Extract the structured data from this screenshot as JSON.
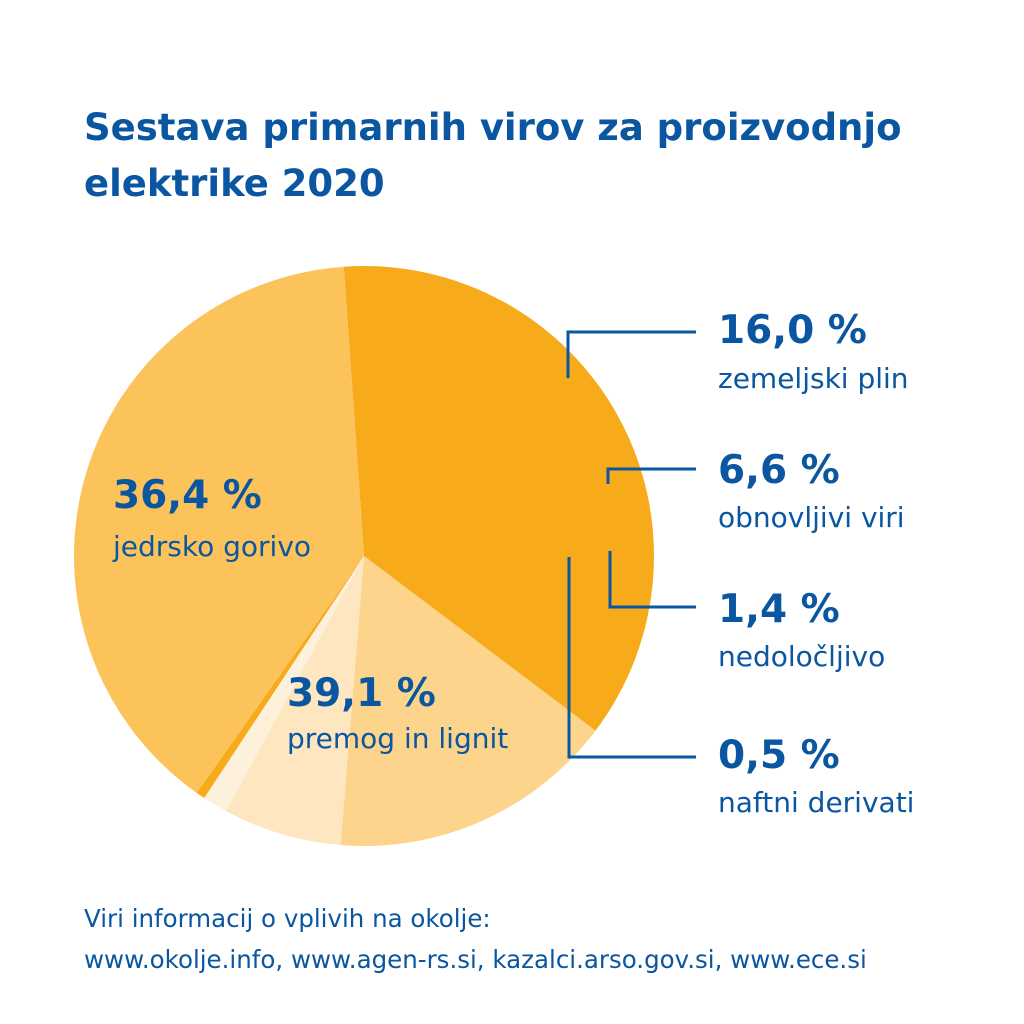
{
  "chart_data": {
    "type": "pie",
    "title": "Sestava primarnih virov za proizvodnjo elektrike 2020",
    "slices": [
      {
        "label": "jedrsko gorivo",
        "value": 36.4,
        "value_label": "36,4 %",
        "color": "#f7ab1b"
      },
      {
        "label": "zemeljski plin",
        "value": 16.0,
        "value_label": "16,0 %",
        "color": "#fdd48b"
      },
      {
        "label": "obnovljivi viri",
        "value": 6.6,
        "value_label": "6,6 %",
        "color": "#fde6c0"
      },
      {
        "label": "nedoločljivo",
        "value": 1.4,
        "value_label": "1,4 %",
        "color": "#fef1dc"
      },
      {
        "label": "naftni derivati",
        "value": 0.5,
        "value_label": "0,5 %",
        "color": "#f7ab1b"
      },
      {
        "label": "premog in lignit",
        "value": 39.1,
        "value_label": "39,1 %",
        "color": "#fdc35b"
      }
    ]
  },
  "title_lines": [
    "Sestava primarnih virov za proizvodnjo",
    "elektrike 2020"
  ],
  "footer": {
    "line1": "Viri informacij o vplivih na okolje:",
    "line2": "www.okolje.info, www.agen-rs.si, kazalci.arso.gov.si, www.ece.si"
  },
  "colors": {
    "text": "#0a56a0",
    "background": "#ffffff"
  }
}
